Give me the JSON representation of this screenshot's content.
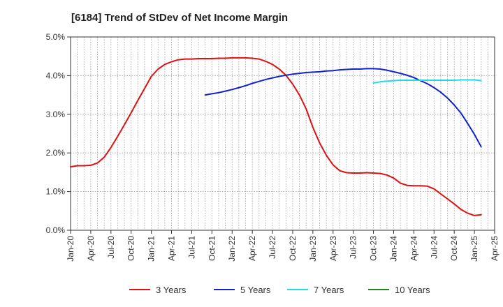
{
  "chart_data": {
    "type": "line",
    "title": "[6184]  Trend of StDev of Net Income Margin",
    "xlabel": "",
    "ylabel": "",
    "ylim": [
      0,
      5.0
    ],
    "y_ticks": [
      "0.0%",
      "1.0%",
      "2.0%",
      "3.0%",
      "4.0%",
      "5.0%"
    ],
    "x_ticks": [
      "Jan-20",
      "Apr-20",
      "Jul-20",
      "Oct-20",
      "Jan-21",
      "Apr-21",
      "Jul-21",
      "Oct-21",
      "Jan-22",
      "Apr-22",
      "Jul-22",
      "Oct-22",
      "Jan-23",
      "Apr-23",
      "Jul-23",
      "Oct-23",
      "Jan-24",
      "Apr-24",
      "Jul-24",
      "Oct-24",
      "Jan-25",
      "Apr-25"
    ],
    "grid": "vertical-monthly-dotted, horizontal-dotted",
    "legend_position": "bottom",
    "series": [
      {
        "name": "3 Years",
        "color": "#dd1111",
        "points": [
          [
            "2020-01",
            1.64
          ],
          [
            "2020-02",
            1.67
          ],
          [
            "2020-03",
            1.67
          ],
          [
            "2020-04",
            1.68
          ],
          [
            "2020-05",
            1.74
          ],
          [
            "2020-06",
            1.89
          ],
          [
            "2020-07",
            2.14
          ],
          [
            "2020-08",
            2.43
          ],
          [
            "2020-09",
            2.73
          ],
          [
            "2020-10",
            3.04
          ],
          [
            "2020-11",
            3.36
          ],
          [
            "2020-12",
            3.67
          ],
          [
            "2021-01",
            3.98
          ],
          [
            "2021-02",
            4.17
          ],
          [
            "2021-03",
            4.29
          ],
          [
            "2021-04",
            4.36
          ],
          [
            "2021-05",
            4.41
          ],
          [
            "2021-06",
            4.43
          ],
          [
            "2021-07",
            4.43
          ],
          [
            "2021-08",
            4.44
          ],
          [
            "2021-09",
            4.44
          ],
          [
            "2021-10",
            4.44
          ],
          [
            "2021-11",
            4.45
          ],
          [
            "2021-12",
            4.45
          ],
          [
            "2022-01",
            4.46
          ],
          [
            "2022-02",
            4.46
          ],
          [
            "2022-03",
            4.46
          ],
          [
            "2022-04",
            4.45
          ],
          [
            "2022-05",
            4.43
          ],
          [
            "2022-06",
            4.37
          ],
          [
            "2022-07",
            4.29
          ],
          [
            "2022-08",
            4.17
          ],
          [
            "2022-09",
            4.01
          ],
          [
            "2022-10",
            3.78
          ],
          [
            "2022-11",
            3.5
          ],
          [
            "2022-12",
            3.14
          ],
          [
            "2023-01",
            2.66
          ],
          [
            "2023-02",
            2.26
          ],
          [
            "2023-03",
            1.94
          ],
          [
            "2023-04",
            1.69
          ],
          [
            "2023-05",
            1.54
          ],
          [
            "2023-06",
            1.49
          ],
          [
            "2023-07",
            1.48
          ],
          [
            "2023-08",
            1.48
          ],
          [
            "2023-09",
            1.49
          ],
          [
            "2023-10",
            1.48
          ],
          [
            "2023-11",
            1.47
          ],
          [
            "2023-12",
            1.43
          ],
          [
            "2024-01",
            1.35
          ],
          [
            "2024-02",
            1.22
          ],
          [
            "2024-03",
            1.16
          ],
          [
            "2024-04",
            1.15
          ],
          [
            "2024-05",
            1.15
          ],
          [
            "2024-06",
            1.14
          ],
          [
            "2024-07",
            1.07
          ],
          [
            "2024-08",
            0.94
          ],
          [
            "2024-09",
            0.81
          ],
          [
            "2024-10",
            0.68
          ],
          [
            "2024-11",
            0.54
          ],
          [
            "2024-12",
            0.44
          ],
          [
            "2025-01",
            0.38
          ],
          [
            "2025-02",
            0.4
          ]
        ]
      },
      {
        "name": "5 Years",
        "color": "#1122cc",
        "points": [
          [
            "2021-09",
            3.5
          ],
          [
            "2021-10",
            3.53
          ],
          [
            "2021-11",
            3.56
          ],
          [
            "2021-12",
            3.6
          ],
          [
            "2022-01",
            3.64
          ],
          [
            "2022-02",
            3.69
          ],
          [
            "2022-03",
            3.74
          ],
          [
            "2022-04",
            3.8
          ],
          [
            "2022-05",
            3.85
          ],
          [
            "2022-06",
            3.9
          ],
          [
            "2022-07",
            3.94
          ],
          [
            "2022-08",
            3.98
          ],
          [
            "2022-09",
            4.01
          ],
          [
            "2022-10",
            4.04
          ],
          [
            "2022-11",
            4.06
          ],
          [
            "2022-12",
            4.08
          ],
          [
            "2023-01",
            4.09
          ],
          [
            "2023-02",
            4.1
          ],
          [
            "2023-03",
            4.12
          ],
          [
            "2023-04",
            4.13
          ],
          [
            "2023-05",
            4.15
          ],
          [
            "2023-06",
            4.16
          ],
          [
            "2023-07",
            4.17
          ],
          [
            "2023-08",
            4.17
          ],
          [
            "2023-09",
            4.18
          ],
          [
            "2023-10",
            4.18
          ],
          [
            "2023-11",
            4.17
          ],
          [
            "2023-12",
            4.14
          ],
          [
            "2024-01",
            4.1
          ],
          [
            "2024-02",
            4.06
          ],
          [
            "2024-03",
            4.01
          ],
          [
            "2024-04",
            3.95
          ],
          [
            "2024-05",
            3.87
          ],
          [
            "2024-06",
            3.79
          ],
          [
            "2024-07",
            3.69
          ],
          [
            "2024-08",
            3.57
          ],
          [
            "2024-09",
            3.42
          ],
          [
            "2024-10",
            3.24
          ],
          [
            "2024-11",
            3.03
          ],
          [
            "2024-12",
            2.76
          ],
          [
            "2025-01",
            2.48
          ],
          [
            "2025-02",
            2.16
          ]
        ]
      },
      {
        "name": "7 Years",
        "color": "#22dddd",
        "points": [
          [
            "2023-10",
            3.81
          ],
          [
            "2023-11",
            3.84
          ],
          [
            "2023-12",
            3.86
          ],
          [
            "2024-01",
            3.87
          ],
          [
            "2024-02",
            3.88
          ],
          [
            "2024-03",
            3.88
          ],
          [
            "2024-04",
            3.88
          ],
          [
            "2024-05",
            3.88
          ],
          [
            "2024-06",
            3.88
          ],
          [
            "2024-07",
            3.88
          ],
          [
            "2024-08",
            3.88
          ],
          [
            "2024-09",
            3.88
          ],
          [
            "2024-10",
            3.88
          ],
          [
            "2024-11",
            3.89
          ],
          [
            "2024-12",
            3.89
          ],
          [
            "2025-01",
            3.89
          ],
          [
            "2025-02",
            3.87
          ]
        ]
      },
      {
        "name": "10 Years",
        "color": "#228822",
        "points": []
      }
    ]
  }
}
